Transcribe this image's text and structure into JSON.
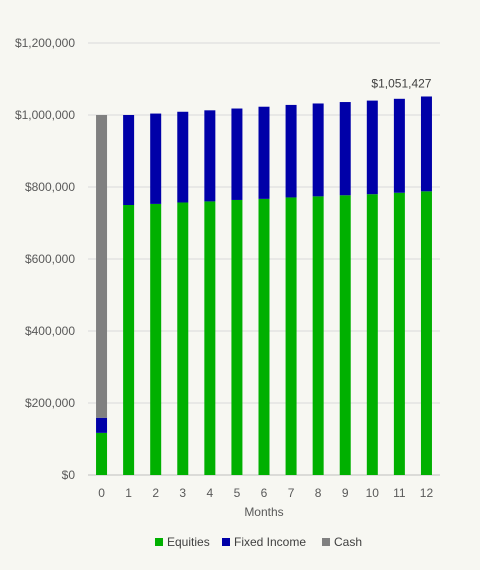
{
  "chart_data": {
    "type": "bar",
    "stacked": true,
    "categories": [
      "0",
      "1",
      "2",
      "3",
      "4",
      "5",
      "6",
      "7",
      "8",
      "9",
      "10",
      "11",
      "12"
    ],
    "series": [
      {
        "name": "Equities",
        "color": "#00b000",
        "values": [
          117000,
          750000,
          753000,
          757000,
          760000,
          764000,
          767000,
          771000,
          774000,
          777000,
          780000,
          784000,
          788000
        ]
      },
      {
        "name": "Fixed Income",
        "color": "#0000a8",
        "values": [
          42000,
          250000,
          251000,
          252000,
          253000,
          254000,
          256000,
          257000,
          258000,
          259000,
          260000,
          261000,
          263427
        ]
      },
      {
        "name": "Cash",
        "color": "#808080",
        "values": [
          841000,
          0,
          0,
          0,
          0,
          0,
          0,
          0,
          0,
          0,
          0,
          0,
          0
        ]
      }
    ],
    "title": "",
    "xlabel": "Months",
    "ylabel": "",
    "ylim": [
      0,
      1200000
    ],
    "yticks": [
      0,
      200000,
      400000,
      600000,
      800000,
      1000000,
      1200000
    ],
    "ytick_labels": [
      "$0",
      "$200,000",
      "$400,000",
      "$600,000",
      "$800,000",
      "$1,000,000",
      "$1,200,000"
    ],
    "grid": true,
    "legend_position": "bottom",
    "annotation": {
      "category": "12",
      "value": 1051427,
      "label": "$1,051,427"
    }
  }
}
